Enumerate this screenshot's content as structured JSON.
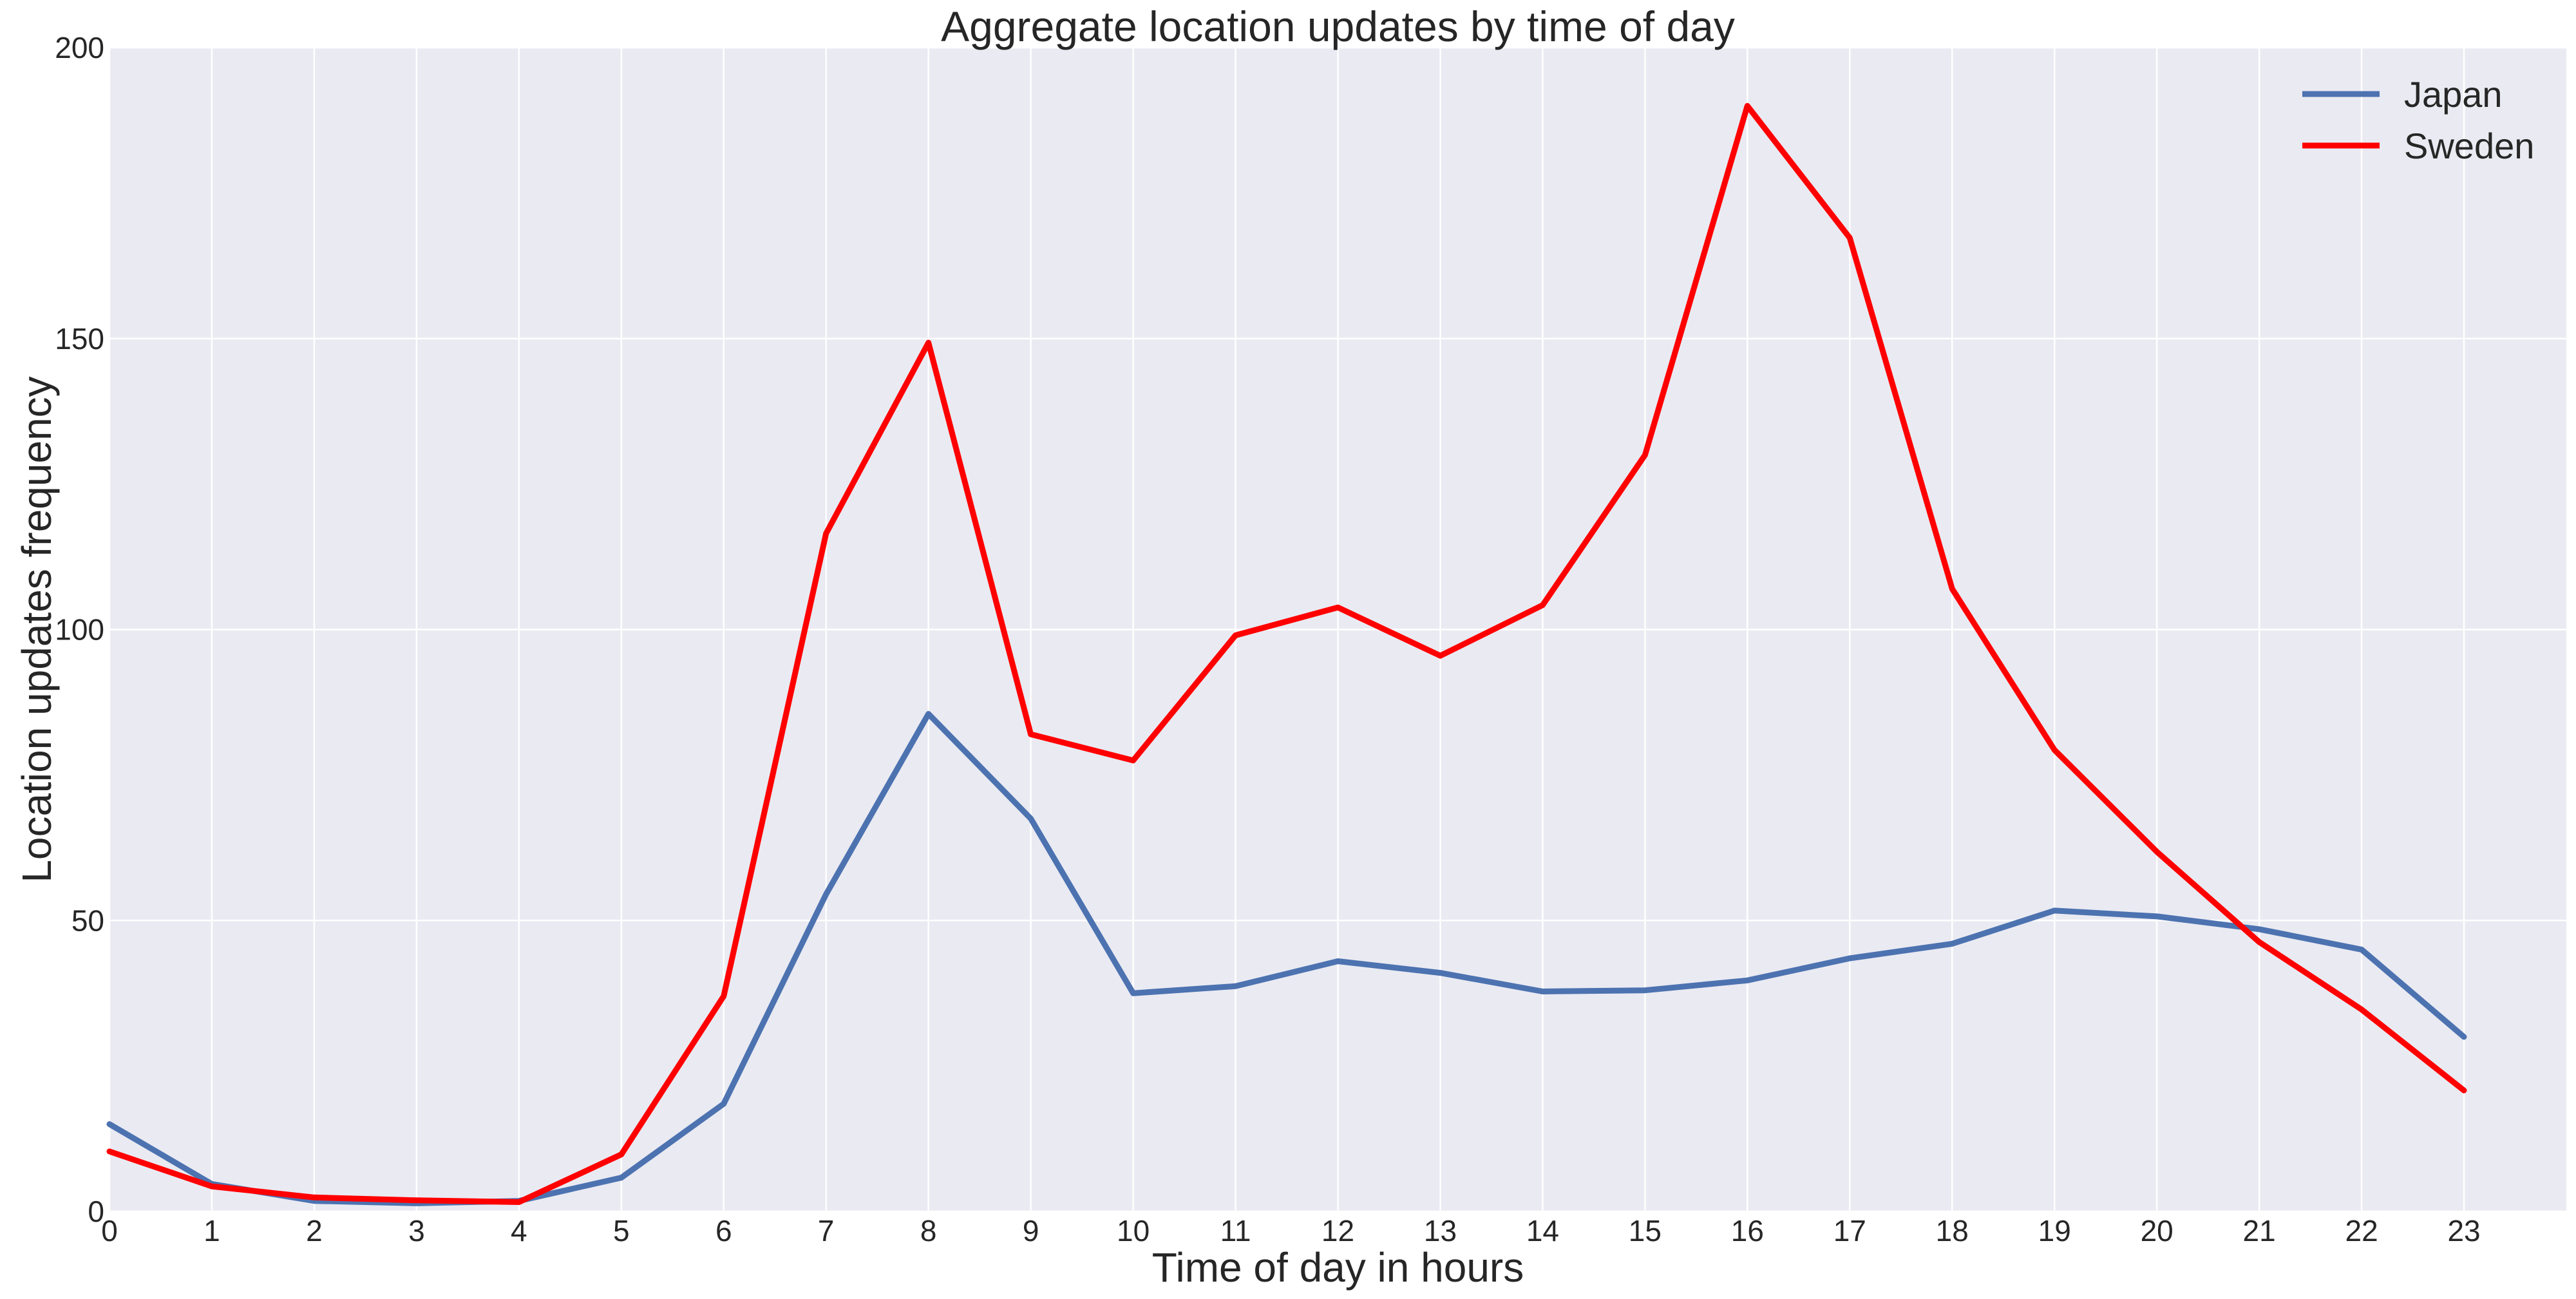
{
  "chart_data": {
    "type": "line",
    "title": "Aggregate location updates by time of day",
    "xlabel": "Time of day in hours",
    "ylabel": "Location updates frequency",
    "x": [
      0,
      1,
      2,
      3,
      4,
      5,
      6,
      7,
      8,
      9,
      10,
      11,
      12,
      13,
      14,
      15,
      16,
      17,
      18,
      19,
      20,
      21,
      22,
      23
    ],
    "xlim": [
      0,
      24
    ],
    "ylim": [
      0,
      200
    ],
    "yticks": [
      0,
      50,
      100,
      150,
      200
    ],
    "xticks": [
      0,
      1,
      2,
      3,
      4,
      5,
      6,
      7,
      8,
      9,
      10,
      11,
      12,
      13,
      14,
      15,
      16,
      17,
      18,
      19,
      20,
      21,
      22,
      23
    ],
    "grid": true,
    "legend_position": "top-right",
    "series": [
      {
        "name": "Japan",
        "color": "#4c72b0",
        "values": [
          15,
          4.7,
          1.8,
          1.4,
          1.8,
          5.8,
          18.5,
          54.5,
          85.5,
          67.5,
          37.5,
          38.7,
          43,
          41,
          37.8,
          38,
          39.7,
          43.5,
          46,
          51.7,
          50.7,
          48.5,
          45,
          30
        ]
      },
      {
        "name": "Sweden",
        "color": "#ff0000",
        "values": [
          10.3,
          4.3,
          2.4,
          1.9,
          1.6,
          9.8,
          37,
          116.5,
          149.3,
          82,
          77.5,
          99,
          103.8,
          95.5,
          104.2,
          130,
          190,
          167.3,
          107,
          79.3,
          61.8,
          46.3,
          34.7,
          20.8
        ]
      }
    ]
  }
}
